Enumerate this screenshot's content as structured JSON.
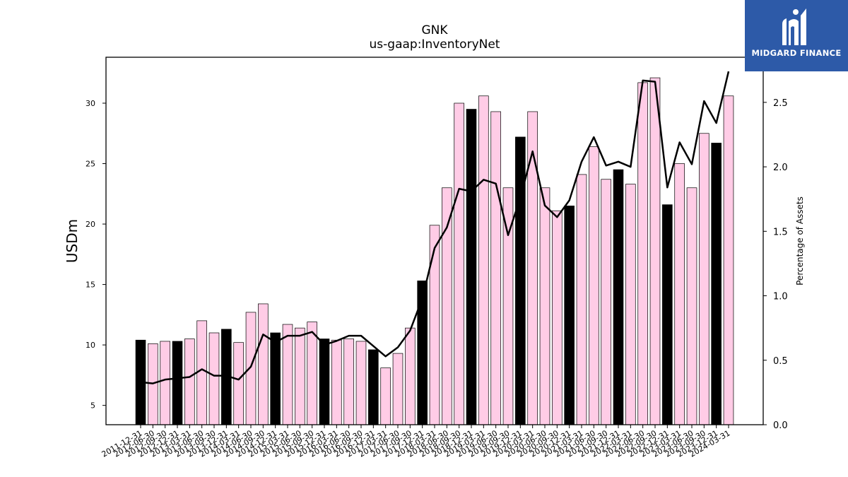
{
  "logo": {
    "name": "MIDGARD FINANCE",
    "icon": "midgard-logo-icon",
    "bg_color": "#2d5aa8"
  },
  "chart_data": {
    "type": "bar",
    "title": "GNK",
    "subtitle": "us-gaap:InventoryNet",
    "ylabel": "USDm",
    "y2label": "Percentage of Assets",
    "ylim": [
      3.4,
      33.8
    ],
    "y2lim": [
      0.0,
      2.85
    ],
    "yticks": [
      5,
      10,
      15,
      20,
      25,
      30
    ],
    "y2ticks": [
      0.0,
      0.5,
      1.0,
      1.5,
      2.0,
      2.5
    ],
    "colors": {
      "q4_bar": "#000000",
      "other_bar": "#ffcce6",
      "line": "#000000"
    },
    "categories": [
      "2011-12-31",
      "2012-06-30",
      "2012-09-30",
      "2012-12-31",
      "2013-03-31",
      "2013-06-30",
      "2013-09-30",
      "2013-12-31",
      "2014-03-31",
      "2014-06-30",
      "2014-09-30",
      "2014-12-31",
      "2015-03-31",
      "2015-06-30",
      "2015-09-30",
      "2015-12-31",
      "2016-03-31",
      "2016-06-30",
      "2016-09-30",
      "2016-12-31",
      "2017-03-31",
      "2017-06-30",
      "2017-09-30",
      "2017-12-31",
      "2018-03-31",
      "2018-06-30",
      "2018-09-30",
      "2018-12-31",
      "2019-03-31",
      "2019-06-30",
      "2019-09-30",
      "2019-12-31",
      "2020-03-31",
      "2020-06-30",
      "2020-09-30",
      "2020-12-31",
      "2021-03-31",
      "2021-06-30",
      "2021-09-30",
      "2021-12-31",
      "2022-03-31",
      "2022-06-30",
      "2022-09-30",
      "2022-12-31",
      "2023-03-31",
      "2023-06-30",
      "2023-09-30",
      "2023-12-31",
      "2024-03-31"
    ],
    "series": [
      {
        "type": "bar",
        "values": [
          10.4,
          10.1,
          10.3,
          10.3,
          10.5,
          12.0,
          11.0,
          11.3,
          10.2,
          12.7,
          13.4,
          11.0,
          11.7,
          11.4,
          11.9,
          10.5,
          10.4,
          10.5,
          10.3,
          9.6,
          8.1,
          9.3,
          11.4,
          15.3,
          19.9,
          23.0,
          30.0,
          29.5,
          30.6,
          29.3,
          23.0,
          27.2,
          29.3,
          23.0,
          21.1,
          21.5,
          24.1,
          26.4,
          23.7,
          24.5,
          23.3,
          31.7,
          32.1,
          21.6,
          25.0,
          23.0,
          27.5,
          26.7,
          30.6
        ]
      },
      {
        "type": "line",
        "axis": "right",
        "values": [
          0.33,
          0.32,
          0.35,
          0.36,
          0.37,
          0.43,
          0.38,
          0.38,
          0.35,
          0.45,
          0.7,
          0.64,
          0.69,
          0.69,
          0.72,
          0.62,
          0.65,
          0.69,
          0.69,
          0.61,
          0.53,
          0.6,
          0.73,
          0.98,
          1.37,
          1.53,
          1.83,
          1.81,
          1.9,
          1.87,
          1.47,
          1.76,
          2.12,
          1.7,
          1.61,
          1.74,
          2.04,
          2.23,
          2.01,
          2.04,
          2.0,
          2.67,
          2.66,
          1.84,
          2.19,
          2.02,
          2.51,
          2.34,
          2.74
        ]
      }
    ]
  }
}
